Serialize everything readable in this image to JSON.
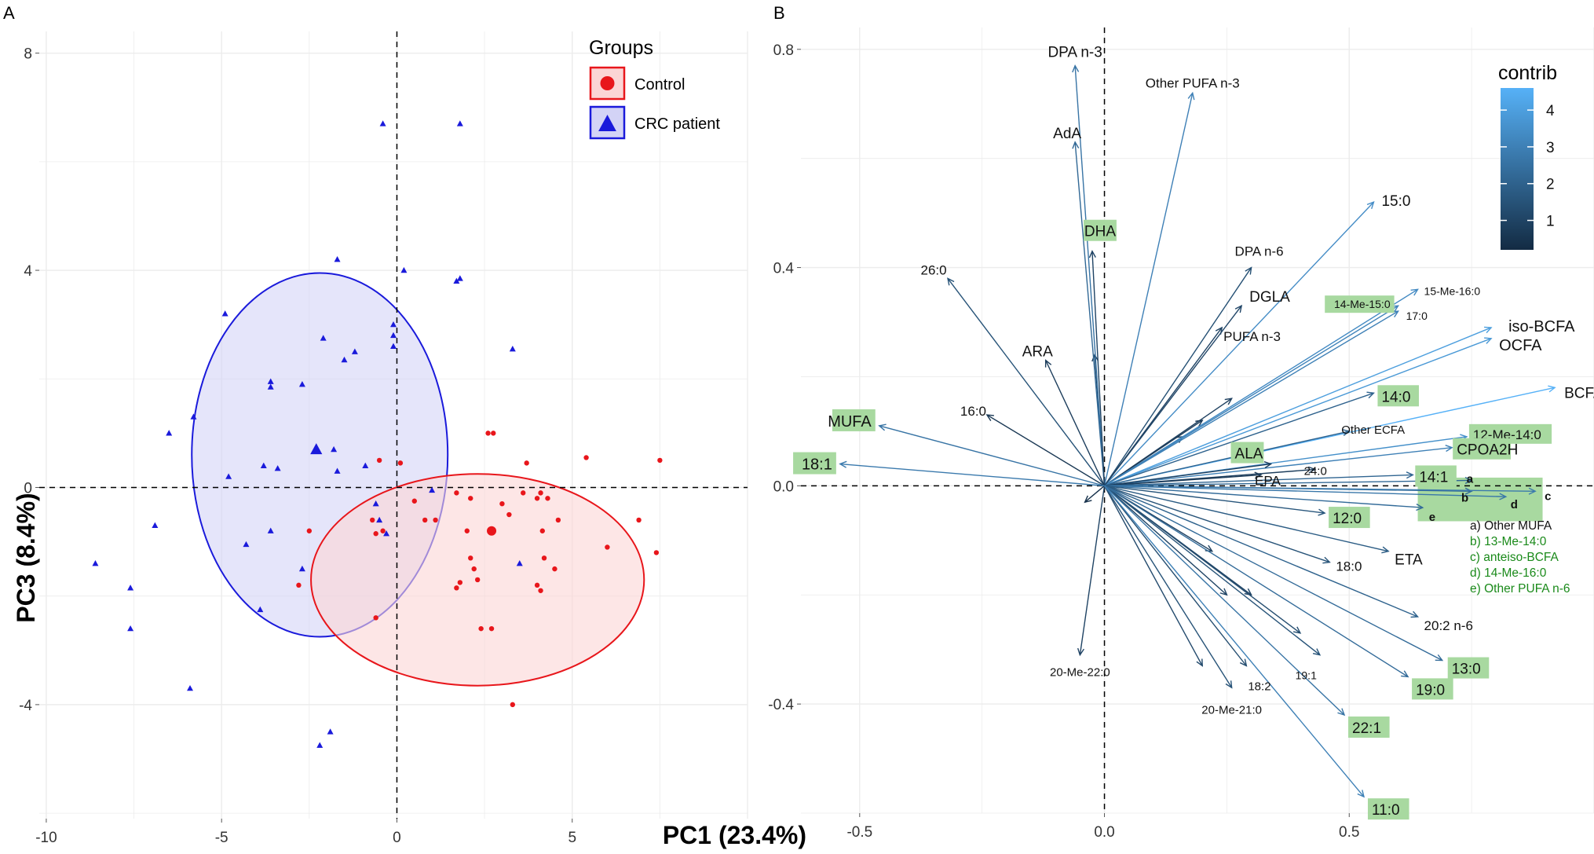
{
  "colors": {
    "control": "#e8161b",
    "crc": "#1a1adb",
    "control_fill": "#fbd5d5",
    "crc_fill": "#d3d3f6",
    "grid": "#ececec",
    "highlight": "#a8d9a0",
    "green_text": "#1a8a1a",
    "arrow_dark": "#132b43",
    "arrow_light": "#56b1f7"
  },
  "chart_data": [
    {
      "type": "scatter",
      "panel_label": "A",
      "xlabel": "PC1 (23.4%)",
      "ylabel": "PC3 (8.4%)",
      "xlim": [
        -10.2,
        10
      ],
      "ylim": [
        -6.1,
        8.4
      ],
      "x_ticks": [
        -10,
        -5,
        0,
        5
      ],
      "y_ticks": [
        -4,
        0,
        4,
        8
      ],
      "legend": {
        "title": "Groups",
        "entries": [
          "Control",
          "CRC patient"
        ],
        "position": "top-right"
      },
      "series": [
        {
          "name": "Control",
          "marker": "circle",
          "centroid": [
            2.7,
            -0.8
          ],
          "ellipse": {
            "cx": 2.3,
            "cy": -1.7,
            "rx": 9.5,
            "ry": 3.9,
            "angle": 0
          },
          "points": [
            [
              -0.5,
              0.5
            ],
            [
              0.1,
              0.45
            ],
            [
              -2.8,
              -1.8
            ],
            [
              -2.5,
              -0.8
            ],
            [
              -0.7,
              -0.6
            ],
            [
              -0.6,
              -0.85
            ],
            [
              -0.4,
              -0.8
            ],
            [
              0.5,
              -0.25
            ],
            [
              0.8,
              -0.6
            ],
            [
              1.1,
              -0.6
            ],
            [
              1.7,
              -0.1
            ],
            [
              2.1,
              -0.2
            ],
            [
              2.6,
              1.0
            ],
            [
              2.75,
              1.0
            ],
            [
              2.0,
              -0.8
            ],
            [
              2.1,
              -1.3
            ],
            [
              2.2,
              -1.5
            ],
            [
              2.3,
              -1.7
            ],
            [
              1.8,
              -1.75
            ],
            [
              1.7,
              -1.85
            ],
            [
              2.4,
              -2.6
            ],
            [
              2.7,
              -2.6
            ],
            [
              3.0,
              -0.3
            ],
            [
              3.2,
              -0.5
            ],
            [
              3.6,
              -0.1
            ],
            [
              4.0,
              -0.2
            ],
            [
              3.7,
              0.45
            ],
            [
              4.1,
              -0.1
            ],
            [
              4.3,
              -0.2
            ],
            [
              4.15,
              -0.8
            ],
            [
              4.2,
              -1.3
            ],
            [
              4.0,
              -1.8
            ],
            [
              4.1,
              -1.9
            ],
            [
              4.6,
              -0.6
            ],
            [
              4.5,
              -1.5
            ],
            [
              5.4,
              0.55
            ],
            [
              6.0,
              -1.1
            ],
            [
              6.9,
              -0.6
            ],
            [
              7.4,
              -1.2
            ],
            [
              7.5,
              0.5
            ],
            [
              3.3,
              -4.0
            ],
            [
              -0.6,
              -2.4
            ]
          ]
        },
        {
          "name": "CRC patient",
          "marker": "triangle",
          "centroid": [
            -2.3,
            0.7
          ],
          "ellipse": {
            "cx": -2.2,
            "cy": 0.6,
            "rx": 7.3,
            "ry": 6.7,
            "angle": 0
          },
          "points": [
            [
              -0.4,
              6.7
            ],
            [
              1.8,
              6.7
            ],
            [
              -1.7,
              4.2
            ],
            [
              0.2,
              4.0
            ],
            [
              1.7,
              3.8
            ],
            [
              1.8,
              3.85
            ],
            [
              -4.9,
              3.2
            ],
            [
              -0.1,
              3.0
            ],
            [
              -0.1,
              2.8
            ],
            [
              -2.1,
              2.75
            ],
            [
              -1.2,
              2.5
            ],
            [
              -1.5,
              2.35
            ],
            [
              -0.1,
              2.6
            ],
            [
              3.3,
              2.55
            ],
            [
              -3.6,
              1.95
            ],
            [
              -3.6,
              1.85
            ],
            [
              -2.7,
              1.9
            ],
            [
              -5.8,
              1.3
            ],
            [
              -6.5,
              1.0
            ],
            [
              -3.8,
              0.4
            ],
            [
              -3.4,
              0.35
            ],
            [
              -2.3,
              0.7
            ],
            [
              -1.8,
              0.7
            ],
            [
              -1.7,
              0.3
            ],
            [
              -0.6,
              -0.3
            ],
            [
              -0.9,
              0.4
            ],
            [
              1.0,
              -0.05
            ],
            [
              -4.8,
              0.2
            ],
            [
              -6.9,
              -0.7
            ],
            [
              -3.6,
              -0.8
            ],
            [
              -0.3,
              -0.85
            ],
            [
              -0.5,
              -0.6
            ],
            [
              -4.3,
              -1.05
            ],
            [
              -2.7,
              -1.5
            ],
            [
              -8.6,
              -1.4
            ],
            [
              -7.6,
              -1.85
            ],
            [
              -7.6,
              -2.6
            ],
            [
              -3.9,
              -2.25
            ],
            [
              3.5,
              -1.4
            ],
            [
              -5.9,
              -3.7
            ],
            [
              -1.9,
              -4.5
            ],
            [
              -2.2,
              -4.75
            ]
          ]
        }
      ]
    },
    {
      "type": "biplot",
      "panel_label": "B",
      "xlim": [
        -0.62,
        1.0
      ],
      "ylim": [
        -0.6,
        0.84
      ],
      "x_ticks": [
        -0.5,
        0.0,
        0.5
      ],
      "y_ticks": [
        0.8,
        0.4,
        0.0,
        -0.4
      ],
      "x_tick_labels": [
        "-0.5",
        "0.0",
        "0.5"
      ],
      "y_tick_labels": [
        "0.8",
        "0.4",
        "0.0",
        "-0.4"
      ],
      "color_legend": {
        "title": "contrib",
        "ticks": [
          4,
          3,
          2,
          1
        ],
        "range": [
          0.2,
          4.6
        ],
        "position": "top-right"
      },
      "variables": [
        {
          "label": "DPA n-3",
          "x": -0.06,
          "y": 0.77,
          "contrib": 2.6
        },
        {
          "label": "Other PUFA n-3",
          "x": 0.18,
          "y": 0.72,
          "contrib": 3.0
        },
        {
          "label": "AdA",
          "x": -0.06,
          "y": 0.63,
          "contrib": 2.2
        },
        {
          "label": "15:0",
          "x": 0.55,
          "y": 0.52,
          "contrib": 3.4
        },
        {
          "label": "DHA",
          "x": -0.025,
          "y": 0.43,
          "contrib": 1.0,
          "highlight": true
        },
        {
          "label": "DPA n-6",
          "x": 0.3,
          "y": 0.4,
          "contrib": 1.4
        },
        {
          "label": "26:0",
          "x": -0.32,
          "y": 0.38,
          "contrib": 1.5
        },
        {
          "label": "15-Me-16:0",
          "x": 0.64,
          "y": 0.36,
          "contrib": 3.3
        },
        {
          "label": "DGLA",
          "x": 0.28,
          "y": 0.33,
          "contrib": 1.1
        },
        {
          "label": "14-Me-15:0",
          "x": 0.6,
          "y": 0.33,
          "contrib": 3.1,
          "highlight": true
        },
        {
          "label": "17:0",
          "x": 0.6,
          "y": 0.32,
          "contrib": 3.0
        },
        {
          "label": "iso-BCFA",
          "x": 0.79,
          "y": 0.29,
          "contrib": 4.0
        },
        {
          "label": "PUFA n-3",
          "x": 0.24,
          "y": 0.29,
          "contrib": 1.0
        },
        {
          "label": "OCFA",
          "x": 0.79,
          "y": 0.27,
          "contrib": 3.8
        },
        {
          "label": "ARA",
          "x": -0.12,
          "y": 0.23,
          "contrib": 0.8
        },
        {
          "label": "BCFA",
          "x": 0.92,
          "y": 0.18,
          "contrib": 4.6
        },
        {
          "label": "14:0",
          "x": 0.55,
          "y": 0.17,
          "contrib": 2.0,
          "highlight": true
        },
        {
          "label": "16:0",
          "x": -0.24,
          "y": 0.13,
          "contrib": 0.6
        },
        {
          "label": "MUFA",
          "x": -0.46,
          "y": 0.11,
          "contrib": 2.6,
          "highlight": true
        },
        {
          "label": "Other ECFA",
          "x": 0.5,
          "y": 0.1,
          "contrib": 2.0
        },
        {
          "label": "12-Me-14:0",
          "x": 0.74,
          "y": 0.09,
          "contrib": 3.5,
          "highlight": true
        },
        {
          "label": "CPOA2H",
          "x": 0.71,
          "y": 0.07,
          "contrib": 3.0,
          "highlight": true
        },
        {
          "label": "18:1",
          "x": -0.54,
          "y": 0.04,
          "contrib": 2.8,
          "highlight": true
        },
        {
          "label": "ALA",
          "x": 0.34,
          "y": 0.04,
          "contrib": 0.8,
          "highlight": true
        },
        {
          "label": "EPA",
          "x": 0.32,
          "y": 0.02,
          "contrib": 0.7
        },
        {
          "label": "24:0",
          "x": 0.43,
          "y": 0.03,
          "contrib": 0.8
        },
        {
          "label": "14:1",
          "x": 0.63,
          "y": 0.02,
          "contrib": 2.1,
          "highlight": true
        },
        {
          "label": "a",
          "x": 0.75,
          "y": 0.01,
          "contrib": 2.2
        },
        {
          "label": "b",
          "x": 0.75,
          "y": -0.01,
          "contrib": 2.3
        },
        {
          "label": "c",
          "x": 0.88,
          "y": -0.01,
          "contrib": 2.8
        },
        {
          "label": "d",
          "x": 0.82,
          "y": -0.02,
          "contrib": 2.7
        },
        {
          "label": "e",
          "x": 0.65,
          "y": -0.04,
          "contrib": 2.3
        },
        {
          "label": "12:0",
          "x": 0.45,
          "y": -0.05,
          "contrib": 1.6,
          "highlight": true
        },
        {
          "label": "ETA",
          "x": 0.58,
          "y": -0.12,
          "contrib": 1.8
        },
        {
          "label": "18:0",
          "x": 0.46,
          "y": -0.14,
          "contrib": 1.5
        },
        {
          "label": "20:2 n-6",
          "x": 0.64,
          "y": -0.24,
          "contrib": 2.0
        },
        {
          "label": "19:1",
          "x": 0.44,
          "y": -0.31,
          "contrib": 1.5
        },
        {
          "label": "13:0",
          "x": 0.69,
          "y": -0.32,
          "contrib": 2.3,
          "highlight": true
        },
        {
          "label": "19:0",
          "x": 0.62,
          "y": -0.35,
          "contrib": 2.3,
          "highlight": true
        },
        {
          "label": "18:2",
          "x": 0.29,
          "y": -0.33,
          "contrib": 1.3
        },
        {
          "label": "20-Me-21:0",
          "x": 0.26,
          "y": -0.37,
          "contrib": 1.5
        },
        {
          "label": "20-Me-22:0",
          "x": -0.05,
          "y": -0.31,
          "contrib": 1.0
        },
        {
          "label": "22:1",
          "x": 0.49,
          "y": -0.42,
          "contrib": 2.6,
          "highlight": true
        },
        {
          "label": "11:0",
          "x": 0.53,
          "y": -0.57,
          "contrib": 3.0,
          "highlight": true
        }
      ],
      "extra_arrows": [
        {
          "x": 0.26,
          "y": 0.16,
          "contrib": 0.9
        },
        {
          "x": 0.2,
          "y": 0.12,
          "contrib": 0.7
        },
        {
          "x": 0.16,
          "y": 0.09,
          "contrib": 0.6
        },
        {
          "x": 0.22,
          "y": -0.12,
          "contrib": 0.9
        },
        {
          "x": 0.25,
          "y": -0.2,
          "contrib": 1.0
        },
        {
          "x": 0.3,
          "y": -0.2,
          "contrib": 1.0
        },
        {
          "x": 0.4,
          "y": -0.27,
          "contrib": 1.3
        },
        {
          "x": 0.2,
          "y": -0.33,
          "contrib": 1.2
        },
        {
          "x": -0.04,
          "y": -0.03,
          "contrib": 0.4
        },
        {
          "x": -0.02,
          "y": 0.24,
          "contrib": 0.8
        }
      ],
      "footnotes": [
        {
          "text": "a) Other MUFA",
          "green": false
        },
        {
          "text": "b) 13-Me-14:0",
          "green": true
        },
        {
          "text": "c) anteiso-BCFA",
          "green": true
        },
        {
          "text": "d) 14-Me-16:0",
          "green": true
        },
        {
          "text": "e) Other PUFA n-6",
          "green": true
        }
      ]
    }
  ]
}
